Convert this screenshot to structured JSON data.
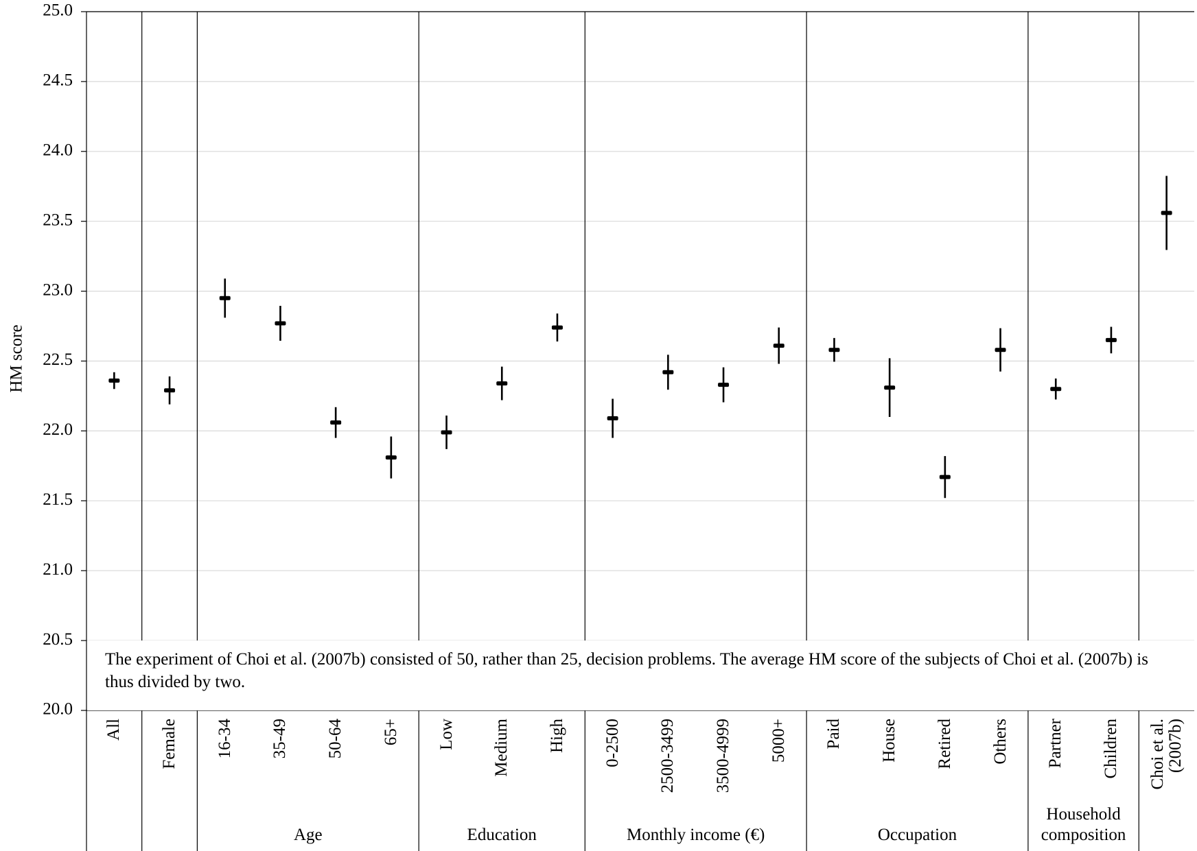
{
  "chart_data": {
    "type": "errorbar",
    "y_label": "HM score",
    "annotation": "The experiment of Choi et al. (2007b) consisted of 50, rather than 25, decision problems. The average HM score of the subjects of Choi et al. (2007b) is thus divided by two.",
    "ylim": [
      20,
      25
    ],
    "yticks": [
      {
        "value": 20,
        "label": "20.0"
      },
      {
        "value": 20.5,
        "label": "20.5"
      },
      {
        "value": 21,
        "label": "21.0"
      },
      {
        "value": 21.5,
        "label": "21.5"
      },
      {
        "value": 22,
        "label": "22.0"
      },
      {
        "value": 22.5,
        "label": "22.5"
      },
      {
        "value": 23,
        "label": "23.0"
      },
      {
        "value": 23.5,
        "label": "23.5"
      },
      {
        "value": 24,
        "label": "24.0"
      },
      {
        "value": 24.5,
        "label": "24.5"
      },
      {
        "value": 25,
        "label": "25.0"
      }
    ],
    "grid": true,
    "color": "#000000",
    "groups": [
      {
        "categories": [
          "All"
        ],
        "values": [
          22.36
        ],
        "errors": [
          0.06
        ]
      },
      {
        "categories": [
          "Female"
        ],
        "values": [
          22.29
        ],
        "errors": [
          0.1
        ]
      },
      {
        "label": "Age",
        "categories": [
          "16-34",
          "35-49",
          "50-64",
          "65+"
        ],
        "values": [
          22.95,
          22.77,
          22.06,
          21.81
        ],
        "errors": [
          0.14,
          0.125,
          0.11,
          0.15
        ]
      },
      {
        "label": "Education",
        "categories": [
          "Low",
          "Medium",
          "High"
        ],
        "values": [
          21.99,
          22.34,
          22.74
        ],
        "errors": [
          0.12,
          0.12,
          0.1
        ]
      },
      {
        "label": "Monthly income (€)",
        "categories": [
          "0-2500",
          "2500-3499",
          "3500-4999",
          "5000+"
        ],
        "values": [
          22.09,
          22.42,
          22.33,
          22.61
        ],
        "errors": [
          0.14,
          0.125,
          0.125,
          0.13
        ]
      },
      {
        "label": "Occupation",
        "categories": [
          "Paid",
          "House",
          "Retired",
          "Others"
        ],
        "values": [
          22.58,
          22.31,
          21.67,
          22.58
        ],
        "errors": [
          0.085,
          0.21,
          0.15,
          0.155
        ]
      },
      {
        "label": "Household composition",
        "categories": [
          "Partner",
          "Children"
        ],
        "values": [
          22.3,
          22.65
        ],
        "errors": [
          0.075,
          0.095
        ]
      },
      {
        "categories": [
          "Choi et al. (2007b)"
        ],
        "values": [
          23.56
        ],
        "errors": [
          0.265
        ]
      }
    ]
  }
}
